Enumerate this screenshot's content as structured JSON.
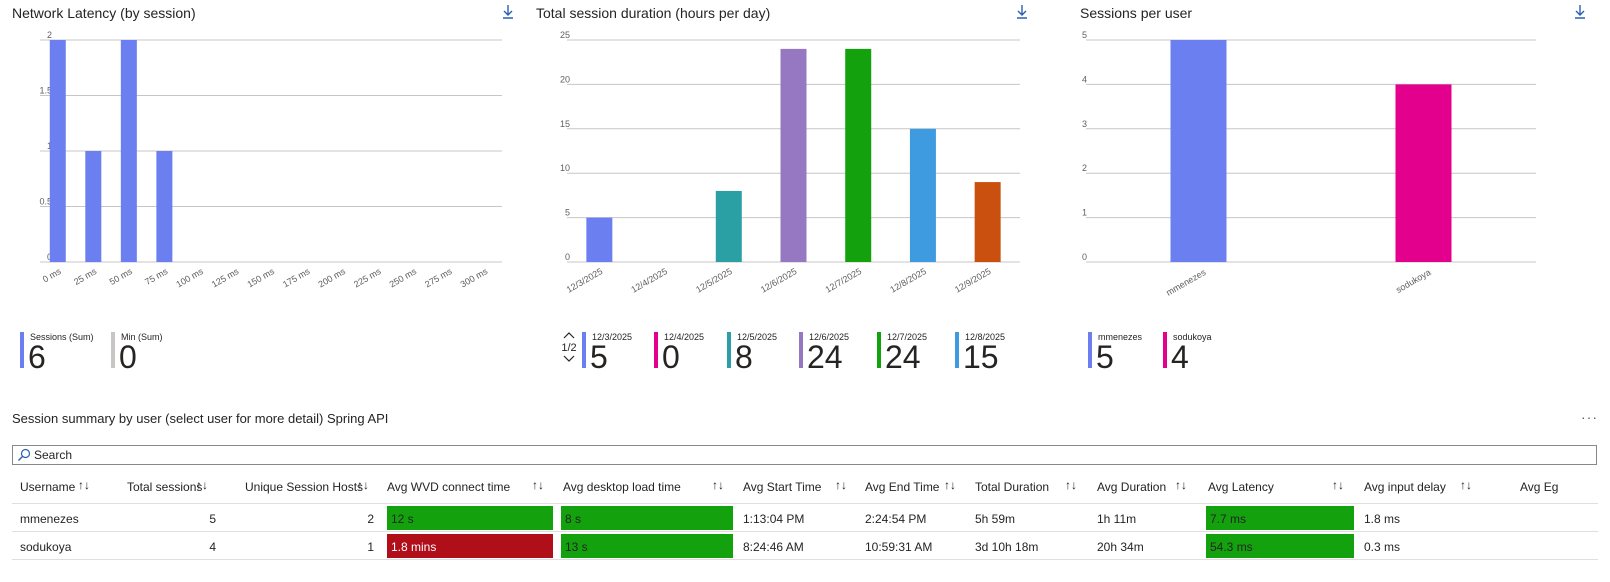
{
  "colors": {
    "blue": "#6b7ff0",
    "magenta": "#e3008c",
    "teal": "#2aa0a4",
    "purple": "#9678c2",
    "green": "#13a10e",
    "lightblue": "#3f9be0",
    "orange": "#ca5010",
    "gray": "#c8c6c4",
    "red": "#b00e19"
  },
  "charts": [
    {
      "title": "Network Latency (by session)",
      "download_icon": "download-icon"
    },
    {
      "title": "Total session duration (hours per day)",
      "download_icon": "download-icon"
    },
    {
      "title": "Sessions per user",
      "download_icon": "download-icon"
    }
  ],
  "chart_data": [
    {
      "type": "bar",
      "title": "Network Latency (by session)",
      "categories": [
        "0 ms",
        "25 ms",
        "50 ms",
        "75 ms",
        "100 ms",
        "125 ms",
        "150 ms",
        "175 ms",
        "200 ms",
        "225 ms",
        "250 ms",
        "275 ms",
        "300 ms"
      ],
      "series": [
        {
          "name": "Sessions (Sum)",
          "values": [
            2,
            1,
            2,
            1,
            0,
            0,
            0,
            0,
            0,
            0,
            0,
            0,
            0
          ]
        },
        {
          "name": "Min (Sum)",
          "values": [
            0,
            0,
            0,
            0,
            0,
            0,
            0,
            0,
            0,
            0,
            0,
            0,
            0
          ]
        }
      ],
      "yticks": [
        "0",
        "0.5",
        "1",
        "1.5",
        "2"
      ],
      "ylim": [
        0,
        2
      ],
      "grid": true
    },
    {
      "type": "bar",
      "title": "Total session duration (hours per day)",
      "categories": [
        "12/3/2025",
        "12/4/2025",
        "12/5/2025",
        "12/6/2025",
        "12/7/2025",
        "12/8/2025",
        "12/9/2025"
      ],
      "values": [
        5,
        0,
        8,
        24,
        24,
        15,
        9
      ],
      "yticks": [
        "0",
        "5",
        "10",
        "15",
        "20",
        "25"
      ],
      "ylim": [
        0,
        25
      ],
      "grid": true
    },
    {
      "type": "bar",
      "title": "Sessions per user",
      "categories": [
        "mmenezes",
        "sodukoya"
      ],
      "values": [
        5,
        4
      ],
      "yticks": [
        "0",
        "1",
        "2",
        "3",
        "4",
        "5"
      ],
      "ylim": [
        0,
        5
      ],
      "grid": true
    }
  ],
  "legends": {
    "latency": [
      {
        "label": "Sessions (Sum)",
        "value": "6"
      },
      {
        "label": "Min (Sum)",
        "value": "0"
      }
    ],
    "duration": [
      {
        "label": "12/3/2025",
        "value": "5"
      },
      {
        "label": "12/4/2025",
        "value": "0"
      },
      {
        "label": "12/5/2025",
        "value": "8"
      },
      {
        "label": "12/6/2025",
        "value": "24"
      },
      {
        "label": "12/7/2025",
        "value": "24"
      },
      {
        "label": "12/8/2025",
        "value": "15"
      }
    ],
    "duration_pager": "1/2",
    "users": [
      {
        "label": "mmenezes",
        "value": "5"
      },
      {
        "label": "sodukoya",
        "value": "4"
      }
    ]
  },
  "summary": {
    "title": "Session summary by user (select user for more detail) Spring API",
    "more_icon": "···",
    "search_placeholder": "Search",
    "sort_icon": "↑↓",
    "columns": [
      "Username",
      "Total sessions",
      "Unique Session Hosts",
      "Avg WVD connect time",
      "Avg desktop load time",
      "Avg Start Time",
      "Avg End Time",
      "Total Duration",
      "Avg Duration",
      "Avg Latency",
      "Avg input delay",
      "Avg Eg"
    ],
    "rows": [
      {
        "username": "mmenezes",
        "total_sessions": "5",
        "unique_hosts": "2",
        "wvd_connect": "12 s",
        "desktop_load": "8 s",
        "start_time": "1:13:04 PM",
        "end_time": "2:24:54 PM",
        "total_duration": "5h 59m",
        "avg_duration": "1h 11m",
        "latency": "7.7 ms",
        "input_delay": "1.8 ms"
      },
      {
        "username": "sodukoya",
        "total_sessions": "4",
        "unique_hosts": "1",
        "wvd_connect": "1.8 mins",
        "desktop_load": "13 s",
        "start_time": "8:24:46 AM",
        "end_time": "10:59:31 AM",
        "total_duration": "3d 10h 18m",
        "avg_duration": "20h 34m",
        "latency": "54.3 ms",
        "input_delay": "0.3 ms"
      }
    ]
  }
}
